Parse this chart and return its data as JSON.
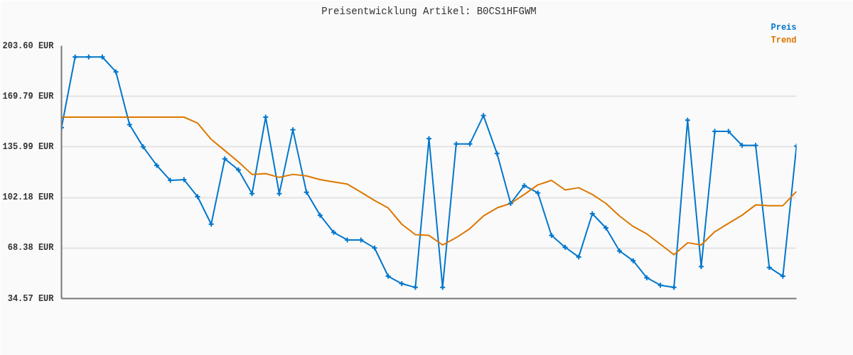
{
  "chart_data": {
    "type": "line",
    "title": "Preisentwicklung Artikel: B0CS1HFGWM",
    "categories": [
      null,
      null,
      null,
      null,
      null,
      null,
      null,
      null,
      null,
      null,
      null,
      null,
      null,
      null,
      null,
      null,
      null,
      null,
      null,
      null,
      null,
      null,
      null,
      null,
      null,
      null,
      null,
      null,
      null,
      null,
      null,
      null,
      null,
      null,
      null,
      null,
      null,
      null,
      null,
      null,
      null,
      null,
      null,
      null,
      null,
      null,
      null,
      null,
      null,
      null,
      null,
      null,
      null,
      null,
      null
    ],
    "series": [
      {
        "name": "Preis",
        "color": "#0077cc",
        "marker": "cross",
        "values": [
          148.9,
          196.1,
          196.1,
          196.1,
          186.2,
          150.9,
          136.0,
          123.6,
          113.6,
          114.1,
          102.7,
          84.3,
          128.0,
          120.6,
          104.7,
          155.9,
          104.7,
          147.4,
          105.7,
          90.3,
          78.8,
          73.8,
          73.8,
          68.4,
          49.5,
          44.5,
          42.0,
          141.5,
          42.0,
          138.0,
          138.0,
          156.9,
          131.5,
          98.2,
          110.1,
          105.2,
          76.8,
          68.9,
          62.4,
          91.3,
          81.8,
          66.4,
          59.9,
          48.5,
          43.5,
          42.0,
          153.9,
          55.9,
          146.4,
          146.4,
          137.0,
          137.0,
          55.4,
          49.5,
          136.5
        ]
      },
      {
        "name": "Trend",
        "color": "#dd7700",
        "values": [
          155.9,
          155.9,
          155.9,
          155.9,
          155.9,
          155.9,
          155.9,
          155.9,
          155.9,
          155.9,
          151.9,
          141.0,
          133.5,
          126.0,
          117.6,
          118.1,
          115.6,
          117.6,
          116.6,
          114.1,
          112.6,
          111.1,
          105.7,
          100.2,
          95.2,
          84.3,
          77.3,
          76.8,
          70.4,
          75.3,
          81.3,
          89.8,
          95.2,
          98.2,
          104.2,
          110.6,
          113.6,
          107.2,
          108.7,
          104.2,
          98.2,
          89.8,
          82.8,
          77.8,
          70.9,
          63.9,
          71.9,
          70.4,
          79.3,
          84.8,
          90.3,
          97.2,
          96.7,
          96.7,
          106.2
        ]
      }
    ],
    "ylim": [
      34.57,
      203.6
    ],
    "yticks": [
      {
        "value": 34.57,
        "label": "34.57 EUR"
      },
      {
        "value": 68.38,
        "label": "68.38 EUR"
      },
      {
        "value": 102.18,
        "label": "102.18 EUR"
      },
      {
        "value": 135.99,
        "label": "135.99 EUR"
      },
      {
        "value": 169.79,
        "label": "169.79 EUR"
      },
      {
        "value": 203.6,
        "label": "203.60 EUR"
      }
    ],
    "grid": "y",
    "legend": "top right",
    "tick_labels": "y"
  }
}
